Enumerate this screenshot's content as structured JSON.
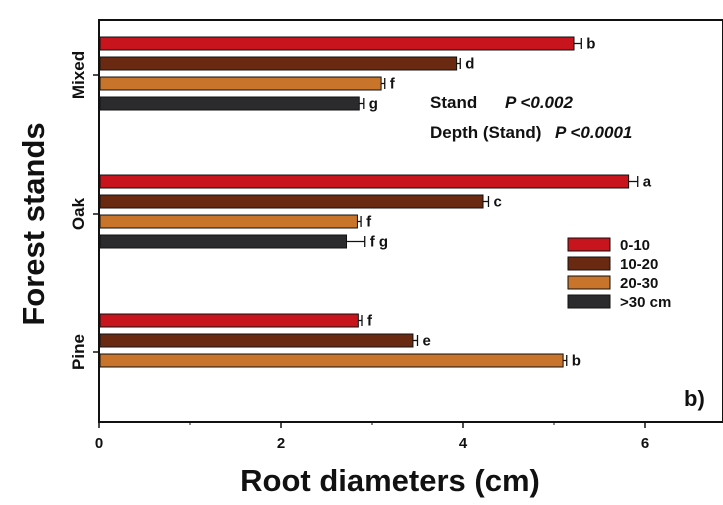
{
  "chart_data": {
    "type": "bar",
    "orientation": "horizontal",
    "xlabel": "Root diameters (cm)",
    "ylabel": "Forest stands",
    "xlim": [
      0,
      7
    ],
    "xticks": [
      "0",
      "2",
      "4",
      "6"
    ],
    "categories": [
      "Mixed",
      "Oak",
      "Pine"
    ],
    "panel_label": "b)",
    "annotations": [
      "Stand",
      "P <0.002",
      "Depth (Stand)",
      "P <0.0001"
    ],
    "legend_position": "right",
    "series": [
      {
        "name": "0-10",
        "color": "#c8141c",
        "values": [
          5.22,
          5.82,
          2.85
        ],
        "errors": [
          0.08,
          0.1,
          0.04
        ],
        "letters": [
          "b",
          "a",
          "f"
        ]
      },
      {
        "name": "10-20",
        "color": "#6a2a12",
        "values": [
          3.93,
          4.22,
          3.45
        ],
        "errors": [
          0.04,
          0.06,
          0.05
        ],
        "letters": [
          "d",
          "c",
          "e"
        ]
      },
      {
        "name": "20-30",
        "color": "#c8742a",
        "values": [
          3.1,
          2.84,
          5.1
        ],
        "errors": [
          0.04,
          0.04,
          0.04
        ],
        "letters": [
          "f",
          "f",
          "b"
        ]
      },
      {
        "name": ">30 cm",
        "color": "#2b2b2e",
        "values": [
          2.86,
          2.72,
          null
        ],
        "errors": [
          0.05,
          0.2,
          null
        ],
        "letters": [
          "g",
          "f g",
          ""
        ]
      }
    ]
  }
}
